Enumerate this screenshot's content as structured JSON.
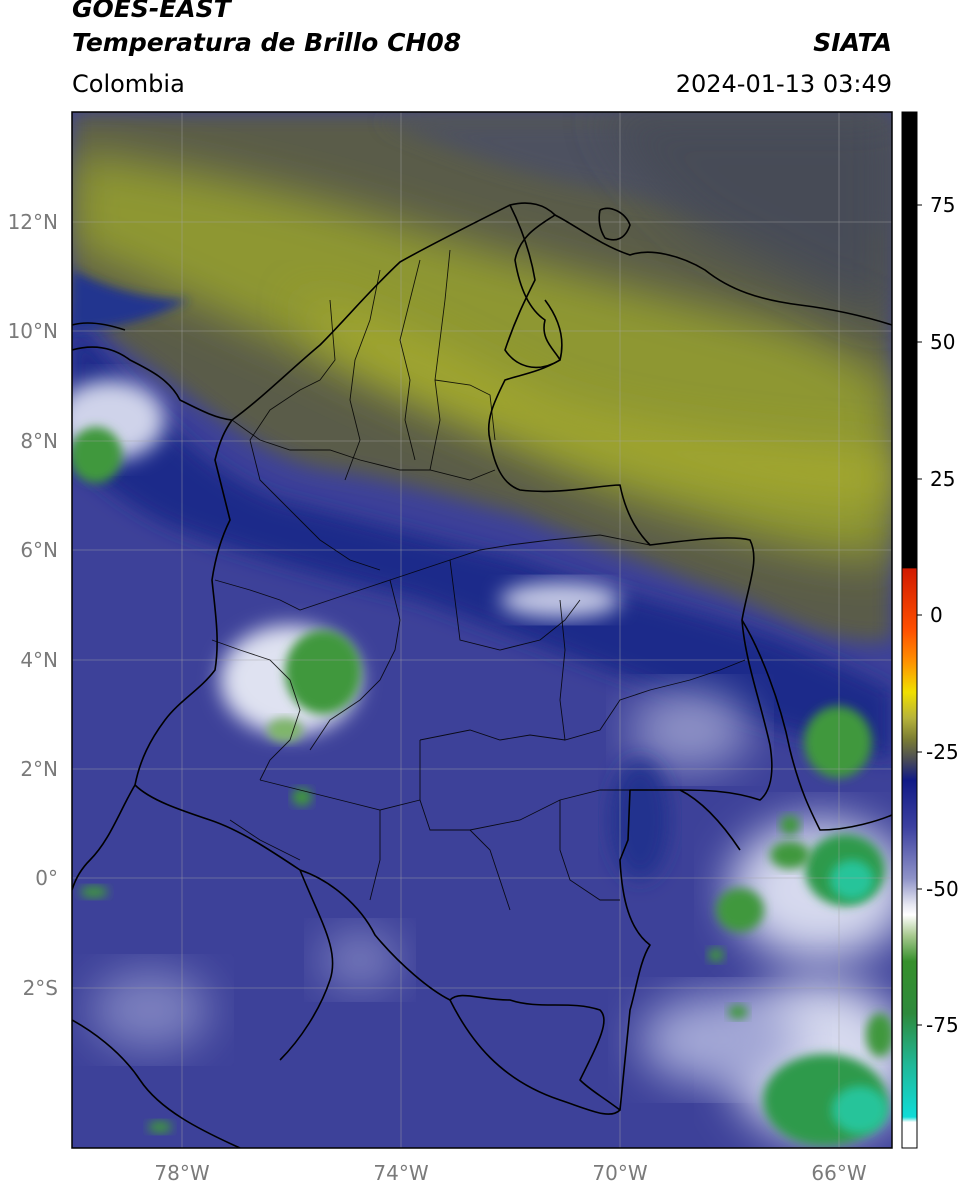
{
  "header": {
    "satellite": "GOES-EAST",
    "product": "Temperatura de Brillo CH08",
    "region": "Colombia",
    "agency": "SIATA",
    "datetime": "2024-01-13 03:49"
  },
  "map": {
    "lat_labels": [
      "12°N",
      "10°N",
      "8°N",
      "6°N",
      "4°N",
      "2°N",
      "0°",
      "2°S"
    ],
    "lon_labels": [
      "78°W",
      "74°W",
      "70°W",
      "66°W"
    ],
    "colors": {
      "cold_blue": "#3b3f98",
      "deep_blue": "#1c2a8c",
      "olive": "#8f9a34",
      "gray_dark": "#4e5258",
      "cloud_white": "#e6e8f2",
      "cloud_green": "#3e9a3c",
      "cloud_teal": "#28c8a0",
      "border": "#000000",
      "grid": "#a6a6a6"
    }
  },
  "colorbar": {
    "ticks": [
      "75",
      "50",
      "25",
      "0",
      "-25",
      "-50",
      "-75"
    ],
    "colors": {
      "black": "#000000",
      "red": "#d11a00",
      "orange": "#ff9000",
      "yellow": "#f0e000",
      "olive": "#7c7e33",
      "navy": "#101a86",
      "lavender": "#c9cbe6",
      "green": "#36902c",
      "cyan": "#10dcd8"
    }
  }
}
